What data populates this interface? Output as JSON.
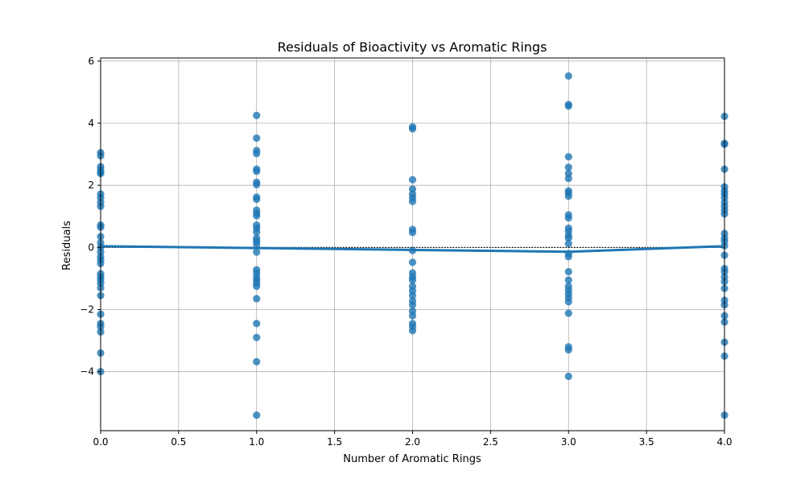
{
  "chart_data": {
    "type": "scatter",
    "title": "Residuals of Bioactivity vs Aromatic Rings",
    "xlabel": "Number of Aromatic Rings",
    "ylabel": "Residuals",
    "xlim": [
      0.0,
      4.0
    ],
    "ylim": [
      -5.9,
      6.1
    ],
    "xticks": [
      {
        "value": 0.0,
        "label": "0.0"
      },
      {
        "value": 0.5,
        "label": "0.5"
      },
      {
        "value": 1.0,
        "label": "1.0"
      },
      {
        "value": 1.5,
        "label": "1.5"
      },
      {
        "value": 2.0,
        "label": "2.0"
      },
      {
        "value": 2.5,
        "label": "2.5"
      },
      {
        "value": 3.0,
        "label": "3.0"
      },
      {
        "value": 3.5,
        "label": "3.5"
      },
      {
        "value": 4.0,
        "label": "4.0"
      }
    ],
    "yticks": [
      {
        "value": -4,
        "label": "−4"
      },
      {
        "value": -2,
        "label": "−2"
      },
      {
        "value": 0,
        "label": "0"
      },
      {
        "value": 2,
        "label": "2"
      },
      {
        "value": 4,
        "label": "4"
      },
      {
        "value": 6,
        "label": "6"
      }
    ],
    "grid": true,
    "reference_line": {
      "y": 0,
      "style": "dotted",
      "color": "#000000"
    },
    "point_color": "#1f77b4",
    "series": [
      {
        "points": [
          [
            0,
            3.05
          ],
          [
            0,
            2.95
          ],
          [
            0,
            2.6
          ],
          [
            0,
            2.5
          ],
          [
            0,
            2.42
          ],
          [
            0,
            2.38
          ],
          [
            0,
            1.72
          ],
          [
            0,
            1.6
          ],
          [
            0,
            1.45
          ],
          [
            0,
            1.32
          ],
          [
            0,
            0.72
          ],
          [
            0,
            0.65
          ],
          [
            0,
            0.35
          ],
          [
            0,
            0.15
          ],
          [
            0,
            0.0
          ],
          [
            0,
            -0.15
          ],
          [
            0,
            -0.3
          ],
          [
            0,
            -0.4
          ],
          [
            0,
            -0.52
          ],
          [
            0,
            -0.85
          ],
          [
            0,
            -0.95
          ],
          [
            0,
            -1.05
          ],
          [
            0,
            -1.15
          ],
          [
            0,
            -1.3
          ],
          [
            0,
            -1.55
          ],
          [
            0,
            -2.15
          ],
          [
            0,
            -2.45
          ],
          [
            0,
            -2.55
          ],
          [
            0,
            -2.72
          ],
          [
            0,
            -3.4
          ],
          [
            0,
            -4.0
          ],
          [
            1,
            4.25
          ],
          [
            1,
            3.52
          ],
          [
            1,
            3.12
          ],
          [
            1,
            3.02
          ],
          [
            1,
            2.52
          ],
          [
            1,
            2.45
          ],
          [
            1,
            2.1
          ],
          [
            1,
            2.02
          ],
          [
            1,
            1.62
          ],
          [
            1,
            1.55
          ],
          [
            1,
            1.2
          ],
          [
            1,
            1.1
          ],
          [
            1,
            1.02
          ],
          [
            1,
            0.72
          ],
          [
            1,
            0.62
          ],
          [
            1,
            0.5
          ],
          [
            1,
            0.3
          ],
          [
            1,
            0.2
          ],
          [
            1,
            0.1
          ],
          [
            1,
            -0.15
          ],
          [
            1,
            -0.72
          ],
          [
            1,
            -0.82
          ],
          [
            1,
            -0.95
          ],
          [
            1,
            -1.05
          ],
          [
            1,
            -1.15
          ],
          [
            1,
            -1.25
          ],
          [
            1,
            -1.65
          ],
          [
            1,
            -2.45
          ],
          [
            1,
            -2.9
          ],
          [
            1,
            -3.68
          ],
          [
            1,
            -5.4
          ],
          [
            2,
            3.88
          ],
          [
            2,
            3.82
          ],
          [
            2,
            2.18
          ],
          [
            2,
            1.88
          ],
          [
            2,
            1.72
          ],
          [
            2,
            1.6
          ],
          [
            2,
            1.48
          ],
          [
            2,
            0.58
          ],
          [
            2,
            0.48
          ],
          [
            2,
            -0.1
          ],
          [
            2,
            -0.48
          ],
          [
            2,
            -0.82
          ],
          [
            2,
            -0.95
          ],
          [
            2,
            -1.05
          ],
          [
            2,
            -1.25
          ],
          [
            2,
            -1.4
          ],
          [
            2,
            -1.55
          ],
          [
            2,
            -1.72
          ],
          [
            2,
            -1.85
          ],
          [
            2,
            -2.05
          ],
          [
            2,
            -2.2
          ],
          [
            2,
            -2.45
          ],
          [
            2,
            -2.55
          ],
          [
            2,
            -2.68
          ],
          [
            3,
            5.52
          ],
          [
            3,
            4.6
          ],
          [
            3,
            4.55
          ],
          [
            3,
            2.92
          ],
          [
            3,
            2.58
          ],
          [
            3,
            2.38
          ],
          [
            3,
            2.22
          ],
          [
            3,
            1.82
          ],
          [
            3,
            1.75
          ],
          [
            3,
            1.65
          ],
          [
            3,
            1.05
          ],
          [
            3,
            0.95
          ],
          [
            3,
            0.62
          ],
          [
            3,
            0.52
          ],
          [
            3,
            0.38
          ],
          [
            3,
            0.3
          ],
          [
            3,
            0.12
          ],
          [
            3,
            -0.2
          ],
          [
            3,
            -0.3
          ],
          [
            3,
            -0.78
          ],
          [
            3,
            -1.05
          ],
          [
            3,
            -1.25
          ],
          [
            3,
            -1.38
          ],
          [
            3,
            -1.5
          ],
          [
            3,
            -1.62
          ],
          [
            3,
            -1.75
          ],
          [
            3,
            -2.12
          ],
          [
            3,
            -3.2
          ],
          [
            3,
            -3.3
          ],
          [
            3,
            -4.15
          ],
          [
            4,
            4.22
          ],
          [
            4,
            3.35
          ],
          [
            4,
            3.32
          ],
          [
            4,
            2.52
          ],
          [
            4,
            1.95
          ],
          [
            4,
            1.82
          ],
          [
            4,
            1.72
          ],
          [
            4,
            1.6
          ],
          [
            4,
            1.45
          ],
          [
            4,
            1.32
          ],
          [
            4,
            1.2
          ],
          [
            4,
            1.08
          ],
          [
            4,
            0.45
          ],
          [
            4,
            0.3
          ],
          [
            4,
            0.2
          ],
          [
            4,
            0.05
          ],
          [
            4,
            -0.25
          ],
          [
            4,
            -0.68
          ],
          [
            4,
            -0.78
          ],
          [
            4,
            -0.95
          ],
          [
            4,
            -1.1
          ],
          [
            4,
            -1.32
          ],
          [
            4,
            -1.7
          ],
          [
            4,
            -1.85
          ],
          [
            4,
            -2.2
          ],
          [
            4,
            -2.4
          ],
          [
            4,
            -3.05
          ],
          [
            4,
            -3.5
          ],
          [
            4,
            -5.4
          ]
        ]
      }
    ],
    "fit_line": {
      "color": "#1f77b4",
      "points": [
        [
          0,
          0.04
        ],
        [
          1,
          -0.02
        ],
        [
          2,
          -0.08
        ],
        [
          3,
          -0.14
        ],
        [
          4,
          0.04
        ]
      ]
    }
  }
}
